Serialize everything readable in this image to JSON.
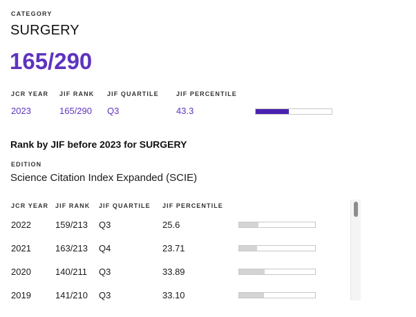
{
  "category": {
    "label": "CATEGORY",
    "name": "SURGERY",
    "rank": "165/290"
  },
  "summary": {
    "headers": {
      "year": "JCR YEAR",
      "rank": "JIF RANK",
      "quartile": "JIF QUARTILE",
      "percentile": "JIF PERCENTILE"
    },
    "year": "2023",
    "rank": "165/290",
    "quartile": "Q3",
    "percentile": "43.3",
    "percentile_value": 43.3
  },
  "history": {
    "title": "Rank by JIF before 2023 for SURGERY",
    "edition_label": "EDITION",
    "edition_value": "Science Citation Index Expanded (SCIE)",
    "headers": {
      "year": "JCR YEAR",
      "rank": "JIF RANK",
      "quartile": "JIF QUARTILE",
      "percentile": "JIF PERCENTILE"
    },
    "rows": [
      {
        "year": "2022",
        "rank": "159/213",
        "quartile": "Q3",
        "percentile": "25.6",
        "percentile_value": 25.6
      },
      {
        "year": "2021",
        "rank": "163/213",
        "quartile": "Q4",
        "percentile": "23.71",
        "percentile_value": 23.71
      },
      {
        "year": "2020",
        "rank": "140/211",
        "quartile": "Q3",
        "percentile": "33.89",
        "percentile_value": 33.89
      },
      {
        "year": "2019",
        "rank": "141/210",
        "quartile": "Q3",
        "percentile": "33.10",
        "percentile_value": 33.1
      }
    ]
  },
  "colors": {
    "accent": "#5e33bf",
    "bar_fill_current": "#4a21b0",
    "bar_fill_history": "#d4d4d4",
    "bar_border": "#c8c8c8"
  }
}
